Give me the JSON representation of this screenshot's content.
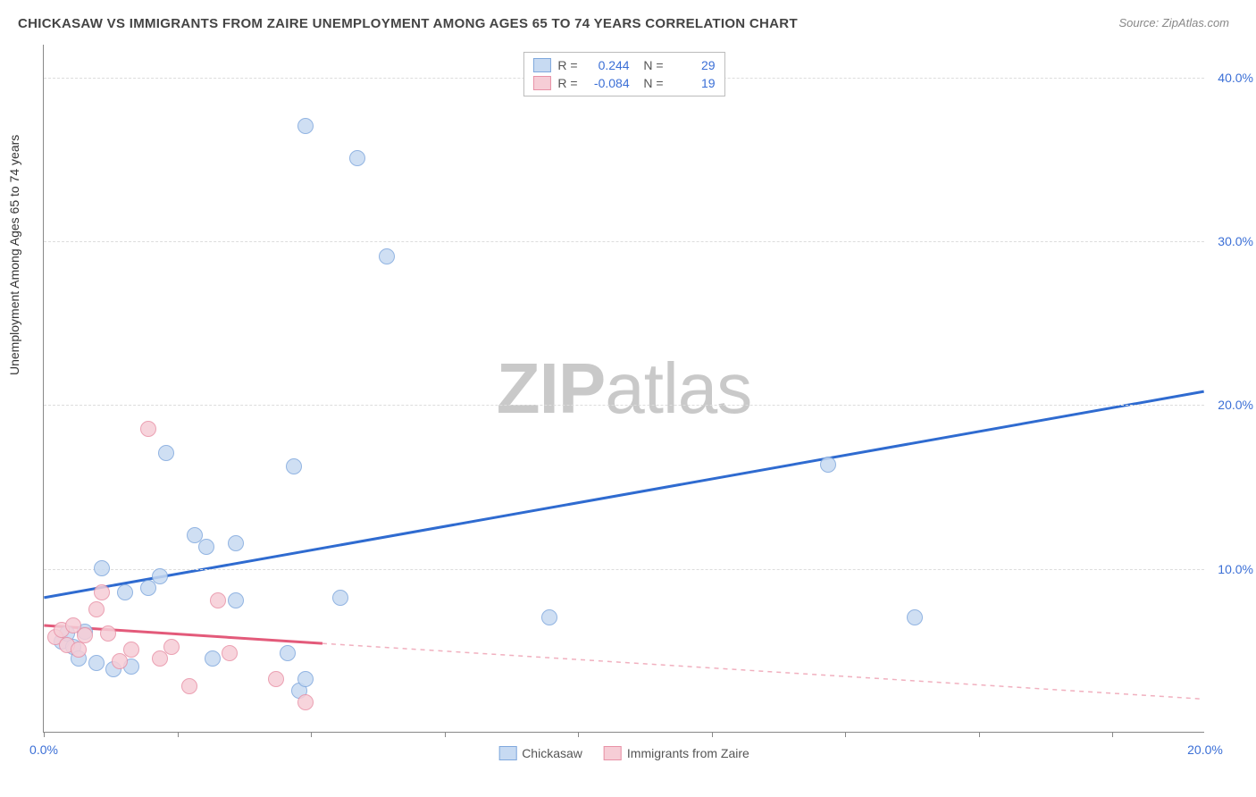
{
  "title": "CHICKASAW VS IMMIGRANTS FROM ZAIRE UNEMPLOYMENT AMONG AGES 65 TO 74 YEARS CORRELATION CHART",
  "source": "Source: ZipAtlas.com",
  "ylabel": "Unemployment Among Ages 65 to 74 years",
  "watermark_bold": "ZIP",
  "watermark_light": "atlas",
  "chart": {
    "type": "scatter",
    "xlim": [
      0,
      20
    ],
    "ylim": [
      0,
      42
    ],
    "xtick_positions": [
      0,
      2.3,
      4.6,
      6.9,
      9.2,
      11.5,
      13.8,
      16.1,
      18.4
    ],
    "xtick_labels": [
      "0.0%",
      "",
      "",
      "",
      "",
      "",
      "",
      "",
      "20.0%"
    ],
    "ytick_positions": [
      10,
      20,
      30,
      40
    ],
    "ytick_labels": [
      "10.0%",
      "20.0%",
      "30.0%",
      "40.0%"
    ],
    "grid_color": "#dddddd",
    "background_color": "#ffffff",
    "point_radius": 9,
    "point_stroke_width": 1.5,
    "series": [
      {
        "name": "Chickasaw",
        "fill": "#c7daf2",
        "stroke": "#7fa8dd",
        "r_value": "0.244",
        "n_value": "29",
        "trend": {
          "x1": 0,
          "y1": 8.2,
          "x2": 20,
          "y2": 20.8,
          "color": "#2f6bd0",
          "width": 3,
          "dash": "none"
        },
        "points": [
          [
            0.3,
            5.5
          ],
          [
            0.4,
            6.0
          ],
          [
            0.5,
            5.2
          ],
          [
            0.6,
            4.5
          ],
          [
            0.7,
            6.1
          ],
          [
            0.9,
            4.2
          ],
          [
            1.0,
            10.0
          ],
          [
            1.2,
            3.8
          ],
          [
            1.4,
            8.5
          ],
          [
            1.5,
            4.0
          ],
          [
            1.8,
            8.8
          ],
          [
            2.0,
            9.5
          ],
          [
            2.1,
            17.0
          ],
          [
            2.6,
            12.0
          ],
          [
            2.8,
            11.3
          ],
          [
            2.9,
            4.5
          ],
          [
            3.3,
            8.0
          ],
          [
            3.3,
            11.5
          ],
          [
            4.2,
            4.8
          ],
          [
            4.3,
            16.2
          ],
          [
            4.4,
            2.5
          ],
          [
            4.5,
            3.2
          ],
          [
            4.5,
            37.0
          ],
          [
            5.1,
            8.2
          ],
          [
            5.4,
            35.0
          ],
          [
            5.9,
            29.0
          ],
          [
            8.7,
            7.0
          ],
          [
            13.5,
            16.3
          ],
          [
            15.0,
            7.0
          ]
        ]
      },
      {
        "name": "Immigrants from Zaire",
        "fill": "#f6cdd6",
        "stroke": "#e891a6",
        "r_value": "-0.084",
        "n_value": "19",
        "trend_solid": {
          "x1": 0,
          "y1": 6.5,
          "x2": 4.8,
          "y2": 5.4,
          "color": "#e35a7a",
          "width": 3
        },
        "trend_dashed": {
          "x1": 4.8,
          "y1": 5.4,
          "x2": 20,
          "y2": 2.0,
          "color": "#f1b0bf",
          "width": 1.5
        },
        "points": [
          [
            0.2,
            5.8
          ],
          [
            0.3,
            6.2
          ],
          [
            0.4,
            5.3
          ],
          [
            0.5,
            6.5
          ],
          [
            0.6,
            5.0
          ],
          [
            0.7,
            5.9
          ],
          [
            0.9,
            7.5
          ],
          [
            1.0,
            8.5
          ],
          [
            1.1,
            6.0
          ],
          [
            1.3,
            4.3
          ],
          [
            1.5,
            5.0
          ],
          [
            1.8,
            18.5
          ],
          [
            2.0,
            4.5
          ],
          [
            2.2,
            5.2
          ],
          [
            2.5,
            2.8
          ],
          [
            3.0,
            8.0
          ],
          [
            3.2,
            4.8
          ],
          [
            4.0,
            3.2
          ],
          [
            4.5,
            1.8
          ]
        ]
      }
    ]
  },
  "legend": {
    "series1": "Chickasaw",
    "series2": "Immigrants from Zaire"
  }
}
